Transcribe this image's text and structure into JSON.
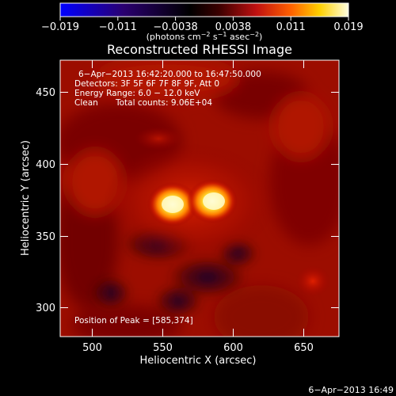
{
  "colorbar": {
    "tick_labels": [
      "−0.019",
      "−0.011",
      "−0.0038",
      "0.0038",
      "0.011",
      "0.019"
    ],
    "unit_prefix": "(photons cm",
    "unit_sup1": "−2",
    "unit_mid": " s",
    "unit_sup2": "−1",
    "unit_mid2": " asec",
    "unit_sup3": "−2",
    "unit_suffix": ")"
  },
  "image": {
    "title": "Reconstructed RHESSI Image",
    "time_range": "6−Apr−2013 16:42:20.000 to 16:47:50.000",
    "detectors": "Detectors: 3F 5F 6F 7F 8F 9F, Att 0",
    "energy_range": "Energy Range: 6.0 − 12.0 keV",
    "clean_label": "Clean",
    "total_counts": "Total counts: 9.06E+04",
    "peak_position": "Position of Peak = [585,374]",
    "xlabel": "Heliocentric X (arcsec)",
    "ylabel": "Heliocentric Y (arcsec)",
    "x_ticks": [
      "500",
      "550",
      "600",
      "650"
    ],
    "y_ticks": [
      "300",
      "350",
      "400",
      "450"
    ],
    "xlim": [
      478,
      670
    ],
    "ylim": [
      280,
      475
    ]
  },
  "footer": {
    "timestamp": "6−Apr−2013 16:49"
  }
}
